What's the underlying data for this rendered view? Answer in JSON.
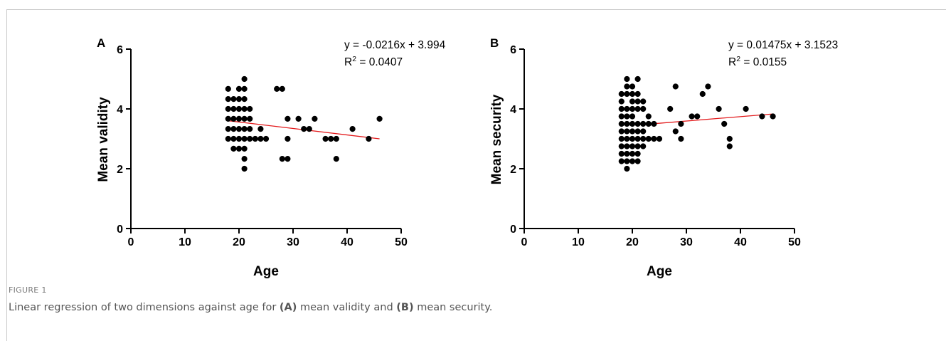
{
  "figure": {
    "label": "FIGURE 1",
    "caption": {
      "prefix": "Linear regression of two dimensions against age for ",
      "a_tag": "(A)",
      "mid": " mean validity and ",
      "b_tag": "(B)",
      "suffix": " mean security."
    }
  },
  "colors": {
    "points": "#000000",
    "fit_line": "#e31a1c",
    "axes": "#000000"
  },
  "chart_data": [
    {
      "type": "scatter",
      "panel": "A",
      "xlabel": "Age",
      "ylabel": "Mean validity",
      "xlim": [
        0,
        50
      ],
      "ylim": [
        0,
        6
      ],
      "xticks": [
        0,
        10,
        20,
        30,
        40,
        50
      ],
      "yticks": [
        0,
        2,
        4,
        6
      ],
      "grid": false,
      "equation": "y = -0.0216x + 3.994",
      "r2_prefix": "R",
      "r2_sup": "2",
      "r2_value": " = 0.0407",
      "fit": {
        "slope": -0.0216,
        "intercept": 3.994,
        "x_range": [
          18,
          46
        ]
      },
      "points": [
        [
          18,
          3.0
        ],
        [
          18,
          3.33
        ],
        [
          18,
          3.67
        ],
        [
          18,
          4.0
        ],
        [
          18,
          4.33
        ],
        [
          18,
          4.67
        ],
        [
          19,
          2.67
        ],
        [
          19,
          3.0
        ],
        [
          19,
          3.33
        ],
        [
          19,
          3.67
        ],
        [
          19,
          4.0
        ],
        [
          19,
          4.33
        ],
        [
          20,
          2.67
        ],
        [
          20,
          3.0
        ],
        [
          20,
          3.33
        ],
        [
          20,
          3.67
        ],
        [
          20,
          4.0
        ],
        [
          20,
          4.33
        ],
        [
          20,
          4.67
        ],
        [
          21,
          2.0
        ],
        [
          21,
          2.33
        ],
        [
          21,
          2.67
        ],
        [
          21,
          3.0
        ],
        [
          21,
          3.33
        ],
        [
          21,
          3.67
        ],
        [
          21,
          4.0
        ],
        [
          21,
          4.33
        ],
        [
          21,
          4.67
        ],
        [
          21,
          5.0
        ],
        [
          22,
          3.0
        ],
        [
          22,
          3.33
        ],
        [
          22,
          3.67
        ],
        [
          22,
          4.0
        ],
        [
          23,
          3.0
        ],
        [
          24,
          3.0
        ],
        [
          24,
          3.33
        ],
        [
          25,
          3.0
        ],
        [
          27,
          4.67
        ],
        [
          28,
          2.33
        ],
        [
          28,
          4.67
        ],
        [
          29,
          2.33
        ],
        [
          29,
          3.0
        ],
        [
          29,
          3.67
        ],
        [
          31,
          3.67
        ],
        [
          32,
          3.33
        ],
        [
          33,
          3.33
        ],
        [
          34,
          3.67
        ],
        [
          36,
          3.0
        ],
        [
          37,
          3.0
        ],
        [
          38,
          2.33
        ],
        [
          38,
          3.0
        ],
        [
          41,
          3.33
        ],
        [
          44,
          3.0
        ],
        [
          46,
          3.67
        ]
      ]
    },
    {
      "type": "scatter",
      "panel": "B",
      "xlabel": "Age",
      "ylabel": "Mean security",
      "xlim": [
        0,
        50
      ],
      "ylim": [
        0,
        6
      ],
      "xticks": [
        0,
        10,
        20,
        30,
        40,
        50
      ],
      "yticks": [
        0,
        2,
        4,
        6
      ],
      "grid": false,
      "equation": "y = 0.01475x + 3.1523",
      "r2_prefix": "R",
      "r2_sup": "2",
      "r2_value": " = 0.0155",
      "fit": {
        "slope": 0.01475,
        "intercept": 3.1523,
        "x_range": [
          23.5,
          46
        ]
      },
      "points": [
        [
          18,
          2.25
        ],
        [
          18,
          2.5
        ],
        [
          18,
          2.75
        ],
        [
          18,
          3.0
        ],
        [
          18,
          3.25
        ],
        [
          18,
          3.5
        ],
        [
          18,
          3.75
        ],
        [
          18,
          4.0
        ],
        [
          18,
          4.25
        ],
        [
          18,
          4.5
        ],
        [
          19,
          2.0
        ],
        [
          19,
          2.25
        ],
        [
          19,
          2.5
        ],
        [
          19,
          2.75
        ],
        [
          19,
          3.0
        ],
        [
          19,
          3.25
        ],
        [
          19,
          3.5
        ],
        [
          19,
          3.75
        ],
        [
          19,
          4.0
        ],
        [
          19,
          4.5
        ],
        [
          19,
          4.75
        ],
        [
          19,
          5.0
        ],
        [
          20,
          2.25
        ],
        [
          20,
          2.5
        ],
        [
          20,
          2.75
        ],
        [
          20,
          3.0
        ],
        [
          20,
          3.25
        ],
        [
          20,
          3.5
        ],
        [
          20,
          3.75
        ],
        [
          20,
          4.0
        ],
        [
          20,
          4.25
        ],
        [
          20,
          4.5
        ],
        [
          20,
          4.75
        ],
        [
          21,
          2.25
        ],
        [
          21,
          2.5
        ],
        [
          21,
          2.75
        ],
        [
          21,
          3.0
        ],
        [
          21,
          3.25
        ],
        [
          21,
          3.5
        ],
        [
          21,
          4.0
        ],
        [
          21,
          4.25
        ],
        [
          21,
          4.5
        ],
        [
          21,
          5.0
        ],
        [
          22,
          2.75
        ],
        [
          22,
          3.0
        ],
        [
          22,
          3.25
        ],
        [
          22,
          3.5
        ],
        [
          22,
          4.0
        ],
        [
          22,
          4.25
        ],
        [
          23,
          3.0
        ],
        [
          23,
          3.5
        ],
        [
          23,
          3.75
        ],
        [
          24,
          3.0
        ],
        [
          24,
          3.5
        ],
        [
          25,
          3.0
        ],
        [
          27,
          4.0
        ],
        [
          28,
          3.25
        ],
        [
          28,
          4.75
        ],
        [
          29,
          3.0
        ],
        [
          29,
          3.5
        ],
        [
          31,
          3.75
        ],
        [
          32,
          3.75
        ],
        [
          33,
          4.5
        ],
        [
          34,
          4.75
        ],
        [
          36,
          4.0
        ],
        [
          37,
          3.5
        ],
        [
          38,
          2.75
        ],
        [
          38,
          3.0
        ],
        [
          41,
          4.0
        ],
        [
          44,
          3.75
        ],
        [
          46,
          3.75
        ]
      ]
    }
  ]
}
